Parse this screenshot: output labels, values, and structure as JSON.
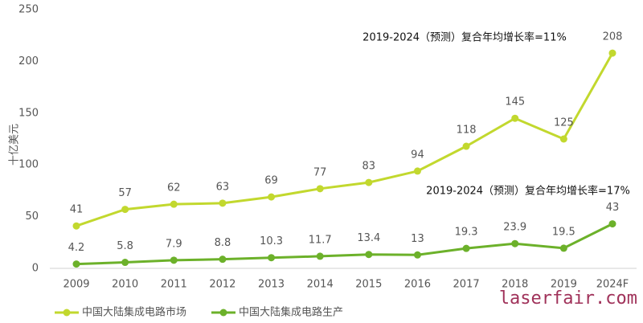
{
  "chart_data": {
    "type": "line",
    "y_label": "十亿美元",
    "categories": [
      "2009",
      "2010",
      "2011",
      "2012",
      "2013",
      "2014",
      "2015",
      "2016",
      "2017",
      "2018",
      "2019",
      "2024F"
    ],
    "series": [
      {
        "name": "中国大陆集成电路市场",
        "color": "#c2d82e",
        "values": [
          41,
          57,
          62,
          63,
          69,
          77,
          83,
          94,
          118,
          145,
          125,
          208
        ]
      },
      {
        "name": "中国大陆集成电路生产",
        "color": "#6cb12a",
        "values": [
          4.2,
          5.8,
          7.9,
          8.8,
          10.3,
          11.7,
          13.4,
          13,
          19.3,
          23.9,
          19.5,
          43
        ]
      }
    ],
    "ylim": [
      0,
      250
    ],
    "yticks": [
      0,
      50,
      100,
      150,
      200,
      250
    ],
    "grid": false,
    "annotations": [
      "2019-2024（预测）复合年均增长率=11%",
      "2019-2024（预测）复合年均增长率=17%"
    ],
    "watermark": "laserfair.com",
    "legend": "bottom-left"
  }
}
